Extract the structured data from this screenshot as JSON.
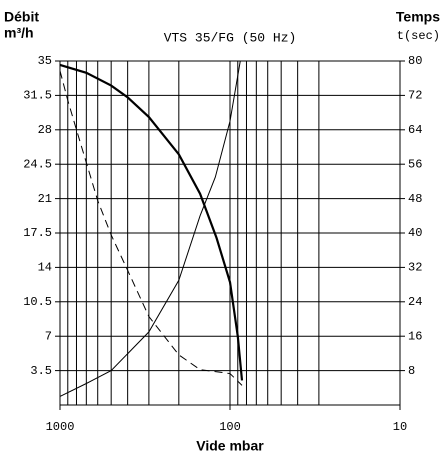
{
  "chart_data": {
    "type": "line",
    "title": "VTS 35/FG (50 Hz)",
    "ylabel": [
      "Débit",
      "m³/h"
    ],
    "y2label": [
      "Temps",
      "t(sec)"
    ],
    "xlabel": "Vide mbar",
    "xscale": "log",
    "xlim": [
      1000,
      10
    ],
    "xticks": [
      1000,
      100,
      10
    ],
    "xminor": [
      900,
      800,
      700,
      600,
      500,
      400,
      300,
      200,
      90,
      80,
      70,
      60,
      50,
      40,
      30
    ],
    "ylim": [
      0,
      35
    ],
    "yticks": [
      3.5,
      7,
      10.5,
      14,
      17.5,
      21,
      24.5,
      28,
      31.5,
      35
    ],
    "y2lim": [
      0,
      80
    ],
    "y2ticks": [
      8,
      16,
      24,
      32,
      40,
      48,
      56,
      64,
      72,
      80
    ],
    "grid": true,
    "series": [
      {
        "color": "#000000",
        "linewidth": 2.2,
        "style": "solid",
        "x": [
          1000,
          700,
          500,
          400,
          300,
          200,
          150,
          120,
          100,
          90,
          85
        ],
        "values": [
          34.6,
          33.8,
          32.5,
          31.3,
          29.3,
          25.5,
          21.5,
          17,
          12.5,
          7,
          2.5
        ]
      },
      {
        "color": "#000000",
        "linewidth": 1,
        "style": "solid",
        "axis": "y2",
        "x": [
          1000,
          700,
          500,
          300,
          200,
          150,
          122,
          100,
          87
        ],
        "values": [
          2,
          5,
          8,
          17,
          29,
          44,
          53,
          66,
          80
        ]
      },
      {
        "color": "#000000",
        "linewidth": 1,
        "style": "dashed",
        "x": [
          1000,
          900,
          800,
          600,
          500,
          400,
          300,
          200,
          150,
          100,
          85
        ],
        "values": [
          34,
          31,
          28,
          20.8,
          17.3,
          13.7,
          9,
          5.1,
          3.6,
          3.2,
          2
        ]
      }
    ]
  }
}
